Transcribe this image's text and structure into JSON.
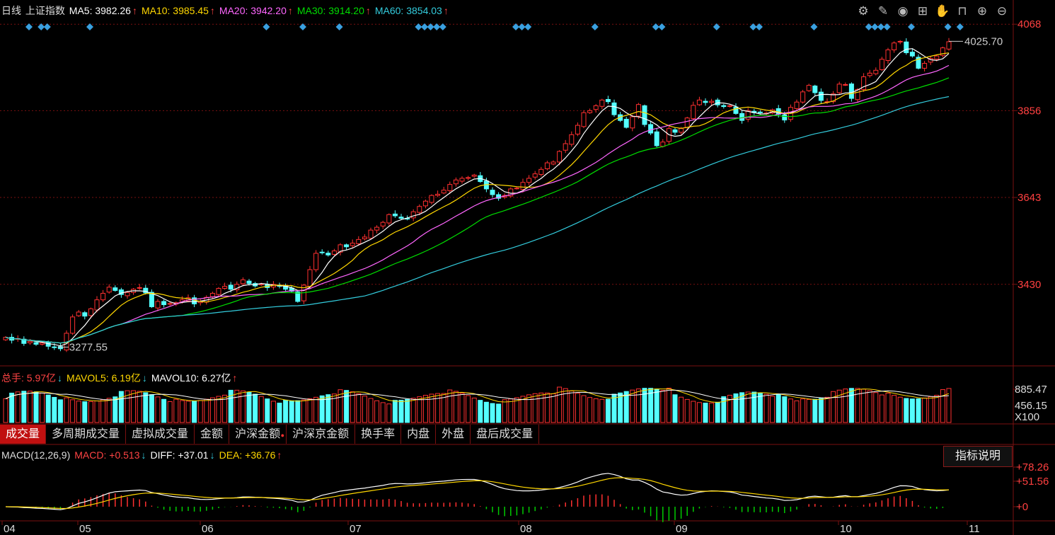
{
  "main_legend": {
    "period": "日线",
    "index_name": "上证指数",
    "items": [
      {
        "label": "MA5: 3982.26",
        "arrow": "↑",
        "color": "#ffffff"
      },
      {
        "label": "MA10: 3985.45",
        "arrow": "↑",
        "color": "#ffd700"
      },
      {
        "label": "MA20: 3942.20",
        "arrow": "↑",
        "color": "#ff66ff"
      },
      {
        "label": "MA30: 3914.20",
        "arrow": "↑",
        "color": "#00dd00"
      },
      {
        "label": "MA60: 3854.03",
        "arrow": "↑",
        "color": "#33ccdd"
      }
    ]
  },
  "toolbar_icons": [
    "gear-icon",
    "pen-icon",
    "eye-icon",
    "briefcase-icon",
    "hand-icon",
    "lock-icon",
    "zoom-in-icon",
    "zoom-out-icon"
  ],
  "price_axis": {
    "ticks": [
      "4068",
      "3856",
      "3643",
      "3430"
    ]
  },
  "annotations": {
    "high": "4025.70",
    "low": "3277.55"
  },
  "volume_legend": {
    "items": [
      {
        "label": "总手: 5.97亿",
        "arrow": "↓",
        "color": "#ff4444",
        "arrow_color": "#33ccdd"
      },
      {
        "label": "MAVOL5: 6.19亿",
        "arrow": "↓",
        "color": "#ffd700",
        "arrow_color": "#33ccdd"
      },
      {
        "label": "MAVOL10: 6.27亿",
        "arrow": "↑",
        "color": "#ffffff",
        "arrow_color": "#ff4444"
      }
    ]
  },
  "volume_axis": {
    "top": "885.47",
    "mid": "456.15",
    "unit": "X100"
  },
  "tabs": [
    {
      "label": "成交量",
      "active": true
    },
    {
      "label": "多周期成交量"
    },
    {
      "label": "虚拟成交量"
    },
    {
      "label": "金额"
    },
    {
      "label": "沪深金额",
      "dot": "●"
    },
    {
      "label": "沪深京金额"
    },
    {
      "label": "换手率"
    },
    {
      "label": "内盘"
    },
    {
      "label": "外盘"
    },
    {
      "label": "盘后成交量"
    }
  ],
  "macd_legend": {
    "items": [
      {
        "label": "MACD(12,26,9)",
        "arrow": "",
        "color": "#dddddd"
      },
      {
        "label": "MACD: +0.513",
        "arrow": "↓",
        "color": "#ff4444",
        "arrow_color": "#33ccdd"
      },
      {
        "label": "DIFF: +37.01",
        "arrow": "↓",
        "color": "#ffffff",
        "arrow_color": "#33ccdd"
      },
      {
        "label": "DEA: +36.76",
        "arrow": "↑",
        "color": "#ffd700",
        "arrow_color": "#ff4444"
      }
    ]
  },
  "explain_button": "指标说明",
  "macd_axis": {
    "ticks": [
      "+78.26",
      "+51.56",
      "+0"
    ]
  },
  "months": [
    "04",
    "05",
    "06",
    "07",
    "08",
    "09",
    "10",
    "11"
  ],
  "colors": {
    "up": "#ff3030",
    "down": "#54ffff",
    "grid": "#7a1010",
    "axis_text": "#ff4040"
  },
  "chart_data": {
    "type": "candlestick",
    "y_range": [
      3230,
      4110
    ],
    "closes": [
      3300,
      3293,
      3297,
      3285,
      3290,
      3283,
      3286,
      3278,
      3276,
      3272,
      3310,
      3350,
      3362,
      3352,
      3370,
      3392,
      3408,
      3423,
      3415,
      3405,
      3410,
      3418,
      3422,
      3409,
      3375,
      3388,
      3380,
      3383,
      3385,
      3392,
      3397,
      3382,
      3388,
      3398,
      3408,
      3420,
      3425,
      3418,
      3430,
      3441,
      3432,
      3426,
      3431,
      3422,
      3430,
      3426,
      3418,
      3413,
      3388,
      3428,
      3466,
      3506,
      3508,
      3502,
      3512,
      3527,
      3522,
      3531,
      3540,
      3546,
      3563,
      3570,
      3582,
      3601,
      3598,
      3592,
      3590,
      3608,
      3621,
      3634,
      3648,
      3651,
      3661,
      3675,
      3686,
      3690,
      3692,
      3698,
      3682,
      3664,
      3650,
      3641,
      3648,
      3664,
      3666,
      3680,
      3690,
      3701,
      3712,
      3728,
      3730,
      3756,
      3775,
      3797,
      3820,
      3851,
      3856,
      3868,
      3882,
      3878,
      3846,
      3832,
      3815,
      3841,
      3871,
      3822,
      3801,
      3770,
      3779,
      3812,
      3803,
      3812,
      3838,
      3869,
      3882,
      3876,
      3879,
      3870,
      3866,
      3868,
      3849,
      3832,
      3856,
      3851,
      3851,
      3850,
      3858,
      3847,
      3833,
      3864,
      3877,
      3902,
      3918,
      3900,
      3881,
      3878,
      3897,
      3921,
      3920,
      3886,
      3908,
      3939,
      3948,
      3955,
      3982,
      4005,
      4022,
      4026,
      3998,
      3990,
      3960,
      3972,
      3984,
      3990,
      4010,
      4025
    ]
  }
}
